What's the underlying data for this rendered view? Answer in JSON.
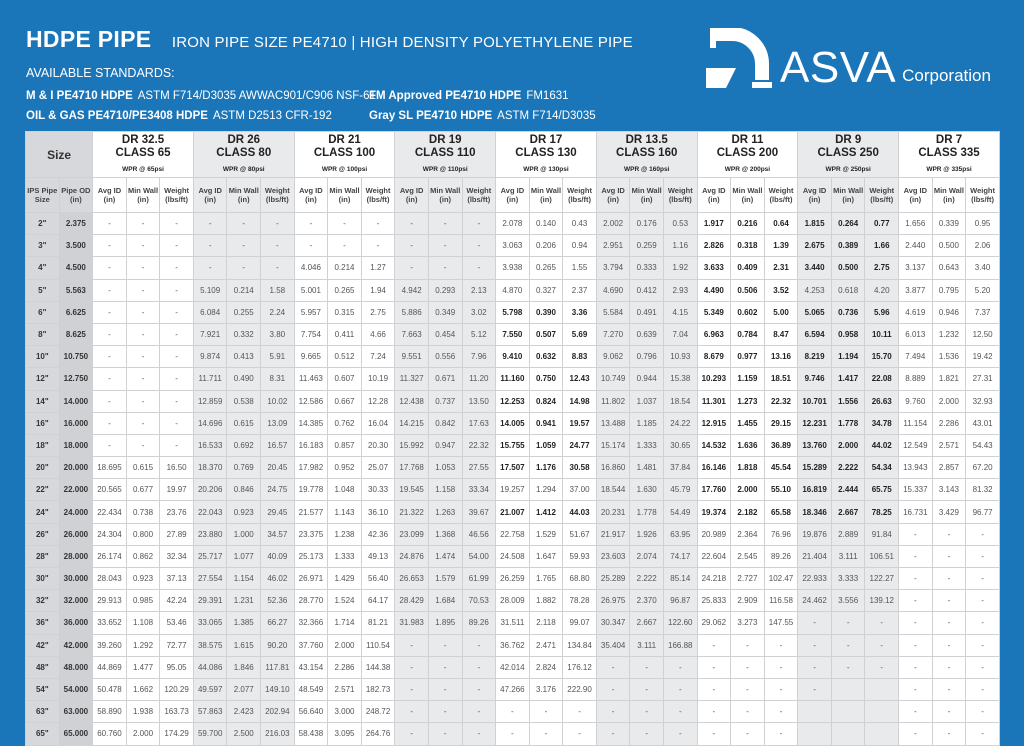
{
  "header": {
    "title": "HDPE PIPE",
    "subtitle": "IRON PIPE SIZE PE4710 | HIGH DENSITY POLYETHYLENE PIPE",
    "standards_label": "AVAILABLE STANDARDS:",
    "standards": [
      {
        "name": "M & I PE4710 HDPE",
        "spec": "ASTM F714/D3035  AWWAC901/C906 NSF-61"
      },
      {
        "name": "FM Approved PE4710 HDPE",
        "spec": "FM1631"
      },
      {
        "name": "OIL & GAS PE4710/PE3408 HDPE",
        "spec": "ASTM D2513 CFR-192"
      },
      {
        "name": "Gray SL PE4710 HDPE",
        "spec": "ASTM F714/D3035"
      }
    ]
  },
  "logo": {
    "name": "ASVA",
    "suffix": "Corporation"
  },
  "colors": {
    "background": "#1a75b9",
    "group_alt": "#e9eaec",
    "size_col": "#d6d8db"
  },
  "table": {
    "size_header": "Size",
    "size_sub": [
      "IPS Pipe Size",
      "Pipe OD (in)"
    ],
    "sub_cols": [
      "Avg ID (in)",
      "Min Wall (in)",
      "Weight (lbs/ft)"
    ],
    "groups": [
      {
        "dr": "DR 32.5",
        "cls": "CLASS 65",
        "wpr": "WPR @ 65psi",
        "bold_rows": []
      },
      {
        "dr": "DR 26",
        "cls": "CLASS 80",
        "wpr": "WPR @ 80psi",
        "bold_rows": []
      },
      {
        "dr": "DR 21",
        "cls": "CLASS 100",
        "wpr": "WPR @ 100psi",
        "bold_rows": []
      },
      {
        "dr": "DR 19",
        "cls": "CLASS 110",
        "wpr": "WPR @ 110psi",
        "bold_rows": []
      },
      {
        "dr": "DR 17",
        "cls": "CLASS 130",
        "wpr": "WPR @ 130psi",
        "bold_rows": [
          4,
          5,
          6,
          7,
          8,
          9,
          10,
          11,
          13
        ]
      },
      {
        "dr": "DR 13.5",
        "cls": "CLASS 160",
        "wpr": "WPR @ 160psi",
        "bold_rows": []
      },
      {
        "dr": "DR 11",
        "cls": "CLASS 200",
        "wpr": "WPR @ 200psi",
        "bold_rows": [
          0,
          1,
          2,
          3,
          4,
          5,
          6,
          7,
          8,
          9,
          10,
          11,
          12,
          13
        ]
      },
      {
        "dr": "DR 9",
        "cls": "CLASS 250",
        "wpr": "WPR @ 250psi",
        "bold_rows": [
          0,
          1,
          2,
          4,
          5,
          6,
          7,
          8,
          9,
          10,
          11,
          12,
          13
        ]
      },
      {
        "dr": "DR 7",
        "cls": "CLASS 335",
        "wpr": "WPR @ 335psi",
        "bold_rows": []
      }
    ],
    "rows": [
      [
        "2\"",
        "2.375",
        "-",
        "-",
        "-",
        "-",
        "-",
        "-",
        "-",
        "-",
        "-",
        "-",
        "-",
        "-",
        "2.078",
        "0.140",
        "0.43",
        "2.002",
        "0.176",
        "0.53",
        "1.917",
        "0.216",
        "0.64",
        "1.815",
        "0.264",
        "0.77",
        "1.656",
        "0.339",
        "0.95"
      ],
      [
        "3\"",
        "3.500",
        "-",
        "-",
        "-",
        "-",
        "-",
        "-",
        "-",
        "-",
        "-",
        "-",
        "-",
        "-",
        "3.063",
        "0.206",
        "0.94",
        "2.951",
        "0.259",
        "1.16",
        "2.826",
        "0.318",
        "1.39",
        "2.675",
        "0.389",
        "1.66",
        "2.440",
        "0.500",
        "2.06"
      ],
      [
        "4\"",
        "4.500",
        "-",
        "-",
        "-",
        "-",
        "-",
        "-",
        "4.046",
        "0.214",
        "1.27",
        "-",
        "-",
        "-",
        "3.938",
        "0.265",
        "1.55",
        "3.794",
        "0.333",
        "1.92",
        "3.633",
        "0.409",
        "2.31",
        "3.440",
        "0.500",
        "2.75",
        "3.137",
        "0.643",
        "3.40"
      ],
      [
        "5\"",
        "5.563",
        "-",
        "-",
        "-",
        "5.109",
        "0.214",
        "1.58",
        "5.001",
        "0.265",
        "1.94",
        "4.942",
        "0.293",
        "2.13",
        "4.870",
        "0.327",
        "2.37",
        "4.690",
        "0.412",
        "2.93",
        "4.490",
        "0.506",
        "3.52",
        "4.253",
        "0.618",
        "4.20",
        "3.877",
        "0.795",
        "5.20"
      ],
      [
        "6\"",
        "6.625",
        "-",
        "-",
        "-",
        "6.084",
        "0.255",
        "2.24",
        "5.957",
        "0.315",
        "2.75",
        "5.886",
        "0.349",
        "3.02",
        "5.798",
        "0.390",
        "3.36",
        "5.584",
        "0.491",
        "4.15",
        "5.349",
        "0.602",
        "5.00",
        "5.065",
        "0.736",
        "5.96",
        "4.619",
        "0.946",
        "7.37"
      ],
      [
        "8\"",
        "8.625",
        "-",
        "-",
        "-",
        "7.921",
        "0.332",
        "3.80",
        "7.754",
        "0.411",
        "4.66",
        "7.663",
        "0.454",
        "5.12",
        "7.550",
        "0.507",
        "5.69",
        "7.270",
        "0.639",
        "7.04",
        "6.963",
        "0.784",
        "8.47",
        "6.594",
        "0.958",
        "10.11",
        "6.013",
        "1.232",
        "12.50"
      ],
      [
        "10\"",
        "10.750",
        "-",
        "-",
        "-",
        "9.874",
        "0.413",
        "5.91",
        "9.665",
        "0.512",
        "7.24",
        "9.551",
        "0.556",
        "7.96",
        "9.410",
        "0.632",
        "8.83",
        "9.062",
        "0.796",
        "10.93",
        "8.679",
        "0.977",
        "13.16",
        "8.219",
        "1.194",
        "15.70",
        "7.494",
        "1.536",
        "19.42"
      ],
      [
        "12\"",
        "12.750",
        "-",
        "-",
        "-",
        "11.711",
        "0.490",
        "8.31",
        "11.463",
        "0.607",
        "10.19",
        "11.327",
        "0.671",
        "11.20",
        "11.160",
        "0.750",
        "12.43",
        "10.749",
        "0.944",
        "15.38",
        "10.293",
        "1.159",
        "18.51",
        "9.746",
        "1.417",
        "22.08",
        "8.889",
        "1.821",
        "27.31"
      ],
      [
        "14\"",
        "14.000",
        "-",
        "-",
        "-",
        "12.859",
        "0.538",
        "10.02",
        "12.586",
        "0.667",
        "12.28",
        "12.438",
        "0.737",
        "13.50",
        "12.253",
        "0.824",
        "14.98",
        "11.802",
        "1.037",
        "18.54",
        "11.301",
        "1.273",
        "22.32",
        "10.701",
        "1.556",
        "26.63",
        "9.760",
        "2.000",
        "32.93"
      ],
      [
        "16\"",
        "16.000",
        "-",
        "-",
        "-",
        "14.696",
        "0.615",
        "13.09",
        "14.385",
        "0.762",
        "16.04",
        "14.215",
        "0.842",
        "17.63",
        "14.005",
        "0.941",
        "19.57",
        "13.488",
        "1.185",
        "24.22",
        "12.915",
        "1.455",
        "29.15",
        "12.231",
        "1.778",
        "34.78",
        "11.154",
        "2.286",
        "43.01"
      ],
      [
        "18\"",
        "18.000",
        "-",
        "-",
        "-",
        "16.533",
        "0.692",
        "16.57",
        "16.183",
        "0.857",
        "20.30",
        "15.992",
        "0.947",
        "22.32",
        "15.755",
        "1.059",
        "24.77",
        "15.174",
        "1.333",
        "30.65",
        "14.532",
        "1.636",
        "36.89",
        "13.760",
        "2.000",
        "44.02",
        "12.549",
        "2.571",
        "54.43"
      ],
      [
        "20\"",
        "20.000",
        "18.695",
        "0.615",
        "16.50",
        "18.370",
        "0.769",
        "20.45",
        "17.982",
        "0.952",
        "25.07",
        "17.768",
        "1.053",
        "27.55",
        "17.507",
        "1.176",
        "30.58",
        "16.860",
        "1.481",
        "37.84",
        "16.146",
        "1.818",
        "45.54",
        "15.289",
        "2.222",
        "54.34",
        "13.943",
        "2.857",
        "67.20"
      ],
      [
        "22\"",
        "22.000",
        "20.565",
        "0.677",
        "19.97",
        "20.206",
        "0.846",
        "24.75",
        "19.778",
        "1.048",
        "30.33",
        "19.545",
        "1.158",
        "33.34",
        "19.257",
        "1.294",
        "37.00",
        "18.544",
        "1.630",
        "45.79",
        "17.760",
        "2.000",
        "55.10",
        "16.819",
        "2.444",
        "65.75",
        "15.337",
        "3.143",
        "81.32"
      ],
      [
        "24\"",
        "24.000",
        "22.434",
        "0.738",
        "23.76",
        "22.043",
        "0.923",
        "29.45",
        "21.577",
        "1.143",
        "36.10",
        "21.322",
        "1.263",
        "39.67",
        "21.007",
        "1.412",
        "44.03",
        "20.231",
        "1.778",
        "54.49",
        "19.374",
        "2.182",
        "65.58",
        "18.346",
        "2.667",
        "78.25",
        "16.731",
        "3.429",
        "96.77"
      ],
      [
        "26\"",
        "26.000",
        "24.304",
        "0.800",
        "27.89",
        "23.880",
        "1.000",
        "34.57",
        "23.375",
        "1.238",
        "42.36",
        "23.099",
        "1.368",
        "46.56",
        "22.758",
        "1.529",
        "51.67",
        "21.917",
        "1.926",
        "63.95",
        "20.989",
        "2.364",
        "76.96",
        "19.876",
        "2.889",
        "91.84",
        "-",
        "-",
        "-"
      ],
      [
        "28\"",
        "28.000",
        "26.174",
        "0.862",
        "32.34",
        "25.717",
        "1.077",
        "40.09",
        "25.173",
        "1.333",
        "49.13",
        "24.876",
        "1.474",
        "54.00",
        "24.508",
        "1.647",
        "59.93",
        "23.603",
        "2.074",
        "74.17",
        "22.604",
        "2.545",
        "89.26",
        "21.404",
        "3.111",
        "106.51",
        "-",
        "-",
        "-"
      ],
      [
        "30\"",
        "30.000",
        "28.043",
        "0.923",
        "37.13",
        "27.554",
        "1.154",
        "46.02",
        "26.971",
        "1.429",
        "56.40",
        "26.653",
        "1.579",
        "61.99",
        "26.259",
        "1.765",
        "68.80",
        "25.289",
        "2.222",
        "85.14",
        "24.218",
        "2.727",
        "102.47",
        "22.933",
        "3.333",
        "122.27",
        "-",
        "-",
        "-"
      ],
      [
        "32\"",
        "32.000",
        "29.913",
        "0.985",
        "42.24",
        "29.391",
        "1.231",
        "52.36",
        "28.770",
        "1.524",
        "64.17",
        "28.429",
        "1.684",
        "70.53",
        "28.009",
        "1.882",
        "78.28",
        "26.975",
        "2.370",
        "96.87",
        "25.833",
        "2.909",
        "116.58",
        "24.462",
        "3.556",
        "139.12",
        "-",
        "-",
        "-"
      ],
      [
        "36\"",
        "36.000",
        "33.652",
        "1.108",
        "53.46",
        "33.065",
        "1.385",
        "66.27",
        "32.366",
        "1.714",
        "81.21",
        "31.983",
        "1.895",
        "89.26",
        "31.511",
        "2.118",
        "99.07",
        "30.347",
        "2.667",
        "122.60",
        "29.062",
        "3.273",
        "147.55",
        "-",
        "-",
        "-",
        "-",
        "-",
        "-"
      ],
      [
        "42\"",
        "42.000",
        "39.260",
        "1.292",
        "72.77",
        "38.575",
        "1.615",
        "90.20",
        "37.760",
        "2.000",
        "110.54",
        "-",
        "-",
        "-",
        "36.762",
        "2.471",
        "134.84",
        "35.404",
        "3.111",
        "166.88",
        "-",
        "-",
        "-",
        "-",
        "-",
        "-",
        "-",
        "-",
        "-"
      ],
      [
        "48\"",
        "48.000",
        "44.869",
        "1.477",
        "95.05",
        "44.086",
        "1.846",
        "117.81",
        "43.154",
        "2.286",
        "144.38",
        "-",
        "-",
        "-",
        "42.014",
        "2.824",
        "176.12",
        "-",
        "-",
        "-",
        "-",
        "-",
        "-",
        "-",
        "-",
        "-",
        "-",
        "-",
        "-"
      ],
      [
        "54\"",
        "54.000",
        "50.478",
        "1.662",
        "120.29",
        "49.597",
        "2.077",
        "149.10",
        "48.549",
        "2.571",
        "182.73",
        "-",
        "-",
        "-",
        "47.266",
        "3.176",
        "222.90",
        "-",
        "-",
        "-",
        "-",
        "-",
        "-",
        "-",
        "",
        "",
        "-",
        "-",
        "-"
      ],
      [
        "63\"",
        "63.000",
        "58.890",
        "1.938",
        "163.73",
        "57.863",
        "2.423",
        "202.94",
        "56.640",
        "3.000",
        "248.72",
        "-",
        "-",
        "-",
        "-",
        "-",
        "-",
        "-",
        "-",
        "-",
        "-",
        "-",
        "-",
        "",
        "",
        "",
        "-",
        "-",
        "-"
      ],
      [
        "65\"",
        "65.000",
        "60.760",
        "2.000",
        "174.29",
        "59.700",
        "2.500",
        "216.03",
        "58.438",
        "3.095",
        "264.76",
        "-",
        "-",
        "-",
        "-",
        "-",
        "-",
        "-",
        "-",
        "-",
        "-",
        "-",
        "-",
        "",
        "",
        "",
        "-",
        "-",
        "-"
      ]
    ]
  }
}
